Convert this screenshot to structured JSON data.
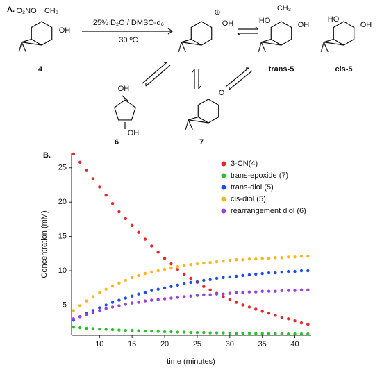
{
  "scheme": {
    "panel_label": "A.",
    "conditions": [
      "25% D₂O / DMSO-d₆",
      "30 ºC"
    ],
    "compounds": [
      {
        "label": "4",
        "atoms": [
          "O₂NO",
          "CH₃",
          "OH"
        ]
      },
      {
        "atoms": [
          "⊕",
          "OH"
        ]
      },
      {
        "label": "trans-5",
        "atoms": [
          "CH₃",
          "HO",
          "OH"
        ]
      },
      {
        "label": "cis-5",
        "atoms": [
          "HO",
          "OH"
        ]
      },
      {
        "label": "6",
        "atoms": [
          "OH",
          "OH"
        ]
      },
      {
        "label": "7",
        "atoms": [
          "O"
        ]
      }
    ]
  },
  "chart_data": {
    "type": "scatter",
    "panel_label": "B.",
    "x_label": "time (minutes)",
    "y_label": "Concentration (mM)",
    "x": [
      6,
      7,
      8,
      9,
      10,
      11,
      12,
      13,
      14,
      15,
      16,
      17,
      18,
      19,
      20,
      21,
      22,
      23,
      24,
      25,
      26,
      27,
      28,
      29,
      30,
      31,
      32,
      33,
      34,
      35,
      36,
      37,
      38,
      39,
      40,
      41,
      42
    ],
    "xlim": [
      5.7,
      42.5
    ],
    "xticks": [
      10,
      15,
      20,
      25,
      30,
      35,
      40
    ],
    "ylim": [
      0.6,
      27.2
    ],
    "yticks": [
      5,
      10,
      15,
      20,
      25
    ],
    "legend": "top-right",
    "series": [
      {
        "name": "3-CN(4)",
        "color": "#e8262a",
        "values": [
          27,
          25.8,
          24.6,
          23.4,
          22.2,
          21,
          19.8,
          18.6,
          17.6,
          16.6,
          15.6,
          14.6,
          13.6,
          12.7,
          11.8,
          11,
          10.2,
          9.5,
          8.9,
          8.3,
          7.7,
          7.2,
          6.7,
          6.2,
          5.8,
          5.4,
          5,
          4.7,
          4.4,
          4.1,
          3.8,
          3.5,
          3.2,
          3,
          2.7,
          2.4,
          2.2
        ]
      },
      {
        "name": "trans-epoxide (7)",
        "color": "#2bc12b",
        "values": [
          1.8,
          1.7,
          1.6,
          1.55,
          1.5,
          1.45,
          1.4,
          1.35,
          1.3,
          1.3,
          1.25,
          1.2,
          1.2,
          1.15,
          1.1,
          1.1,
          1.05,
          1.05,
          1,
          1,
          1,
          0.95,
          0.95,
          0.95,
          0.9,
          0.9,
          0.9,
          0.9,
          0.85,
          0.85,
          0.85,
          0.85,
          0.8,
          0.8,
          0.8,
          0.8,
          0.8
        ]
      },
      {
        "name": "trans-diol (5)",
        "color": "#1f4fe0",
        "values": [
          2.8,
          3.3,
          3.8,
          4.2,
          4.6,
          5,
          5.4,
          5.7,
          6,
          6.3,
          6.6,
          6.8,
          7.1,
          7.3,
          7.5,
          7.7,
          7.9,
          8.1,
          8.3,
          8.4,
          8.6,
          8.7,
          8.9,
          9,
          9.1,
          9.2,
          9.3,
          9.4,
          9.5,
          9.6,
          9.7,
          9.7,
          9.8,
          9.9,
          9.9,
          10,
          10
        ]
      },
      {
        "name": "cis-diol (5)",
        "color": "#f8b51c",
        "values": [
          4.2,
          4.9,
          5.6,
          6.2,
          6.8,
          7.3,
          7.8,
          8.2,
          8.6,
          9,
          9.3,
          9.6,
          9.8,
          10,
          10.2,
          10.4,
          10.6,
          10.8,
          10.9,
          11,
          11.1,
          11.2,
          11.3,
          11.4,
          11.5,
          11.6,
          11.6,
          11.7,
          11.7,
          11.8,
          11.8,
          11.9,
          11.9,
          12,
          12,
          12.1,
          12.1
        ]
      },
      {
        "name": "rearrangement diol (6)",
        "color": "#9a3fe0",
        "values": [
          3,
          3.3,
          3.6,
          3.9,
          4.2,
          4.5,
          4.7,
          4.9,
          5.1,
          5.3,
          5.4,
          5.6,
          5.7,
          5.8,
          5.9,
          6,
          6.1,
          6.2,
          6.3,
          6.4,
          6.5,
          6.5,
          6.6,
          6.6,
          6.7,
          6.8,
          6.8,
          6.9,
          6.9,
          7,
          7,
          7,
          7.1,
          7.1,
          7.1,
          7.2,
          7.2
        ]
      }
    ]
  }
}
